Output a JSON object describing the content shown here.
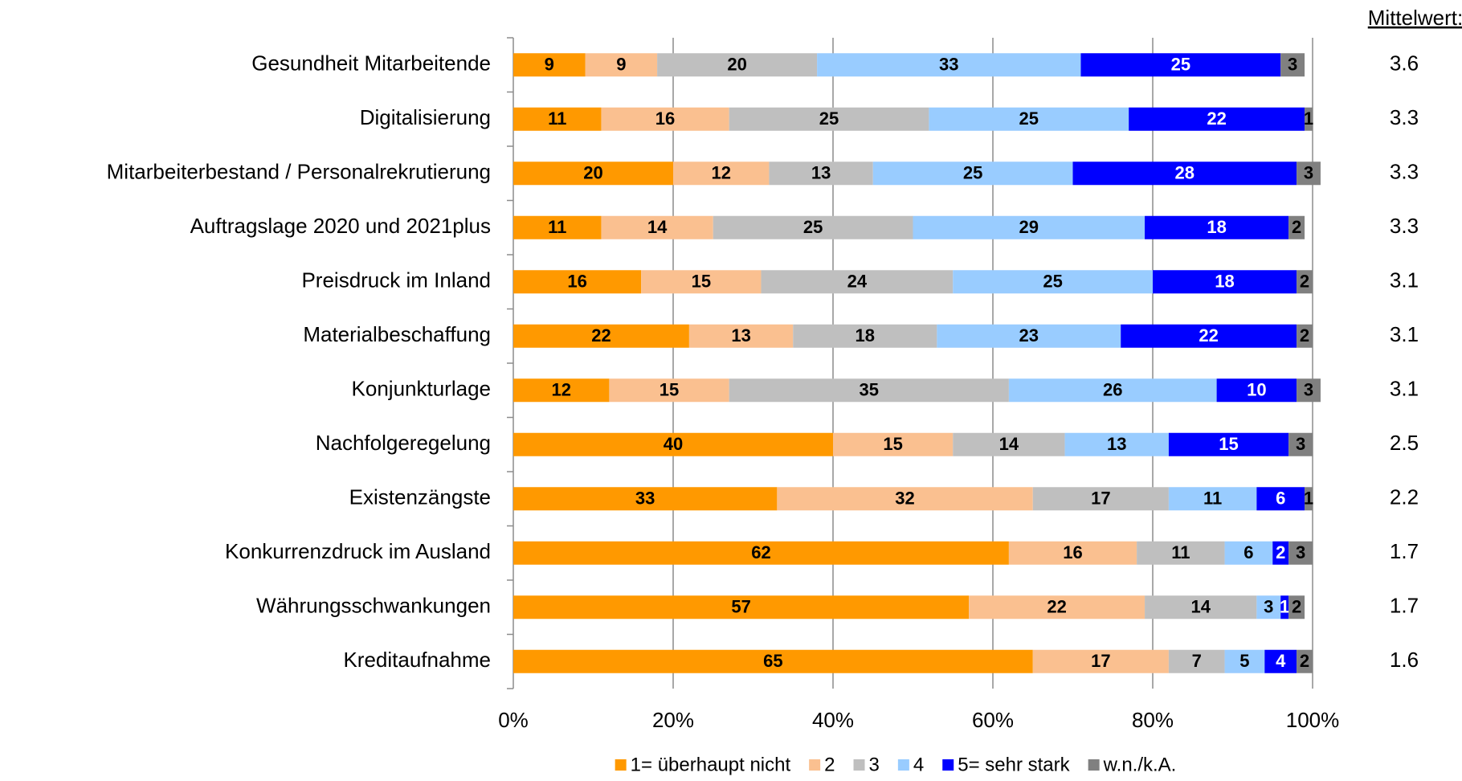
{
  "chart_data": {
    "type": "stacked_barh",
    "categories": [
      "Gesundheit Mitarbeitende",
      "Digitalisierung",
      "Mitarbeiterbestand / Personalrekrutierung",
      "Auftragslage 2020 und 2021plus",
      "Preisdruck im Inland",
      "Materialbeschaffung",
      "Konjunkturlage",
      "Nachfolgeregelung",
      "Existenzängste",
      "Konkurrenzdruck im Ausland",
      "Währungsschwankungen",
      "Kreditaufnahme"
    ],
    "series": [
      {
        "name": "1= überhaupt nicht",
        "color": "#ff9900",
        "label_color": "#000000",
        "values": [
          9,
          11,
          20,
          11,
          16,
          22,
          12,
          40,
          33,
          62,
          57,
          65
        ]
      },
      {
        "name": "2",
        "color": "#fac090",
        "label_color": "#000000",
        "values": [
          9,
          16,
          12,
          14,
          15,
          13,
          15,
          15,
          32,
          16,
          22,
          17
        ]
      },
      {
        "name": "3",
        "color": "#bfbfbf",
        "label_color": "#000000",
        "values": [
          20,
          25,
          13,
          25,
          24,
          18,
          35,
          14,
          17,
          11,
          14,
          7
        ]
      },
      {
        "name": "4",
        "color": "#99ccff",
        "label_color": "#000000",
        "values": [
          33,
          25,
          25,
          29,
          25,
          23,
          26,
          13,
          11,
          6,
          3,
          5
        ]
      },
      {
        "name": "5= sehr stark",
        "color": "#0000ff",
        "label_color": "#ffffff",
        "values": [
          25,
          22,
          28,
          18,
          18,
          22,
          10,
          15,
          6,
          2,
          1,
          4
        ]
      },
      {
        "name": "w.n./k.A.",
        "color": "#808080",
        "label_color": "#000000",
        "values": [
          3,
          1,
          3,
          2,
          2,
          2,
          3,
          3,
          1,
          3,
          2,
          2
        ]
      }
    ],
    "xlim": [
      0,
      100
    ],
    "xticks": [
      {
        "value": 0,
        "label": "0%"
      },
      {
        "value": 20,
        "label": "20%"
      },
      {
        "value": 40,
        "label": "40%"
      },
      {
        "value": 60,
        "label": "60%"
      },
      {
        "value": 80,
        "label": "80%"
      },
      {
        "value": 100,
        "label": "100%"
      }
    ],
    "grid": true,
    "mean_title": "Mittelwert:",
    "means": [
      3.6,
      3.3,
      3.3,
      3.3,
      3.1,
      3.1,
      3.1,
      2.5,
      2.2,
      1.7,
      1.7,
      1.6
    ],
    "legend": "bottom"
  }
}
